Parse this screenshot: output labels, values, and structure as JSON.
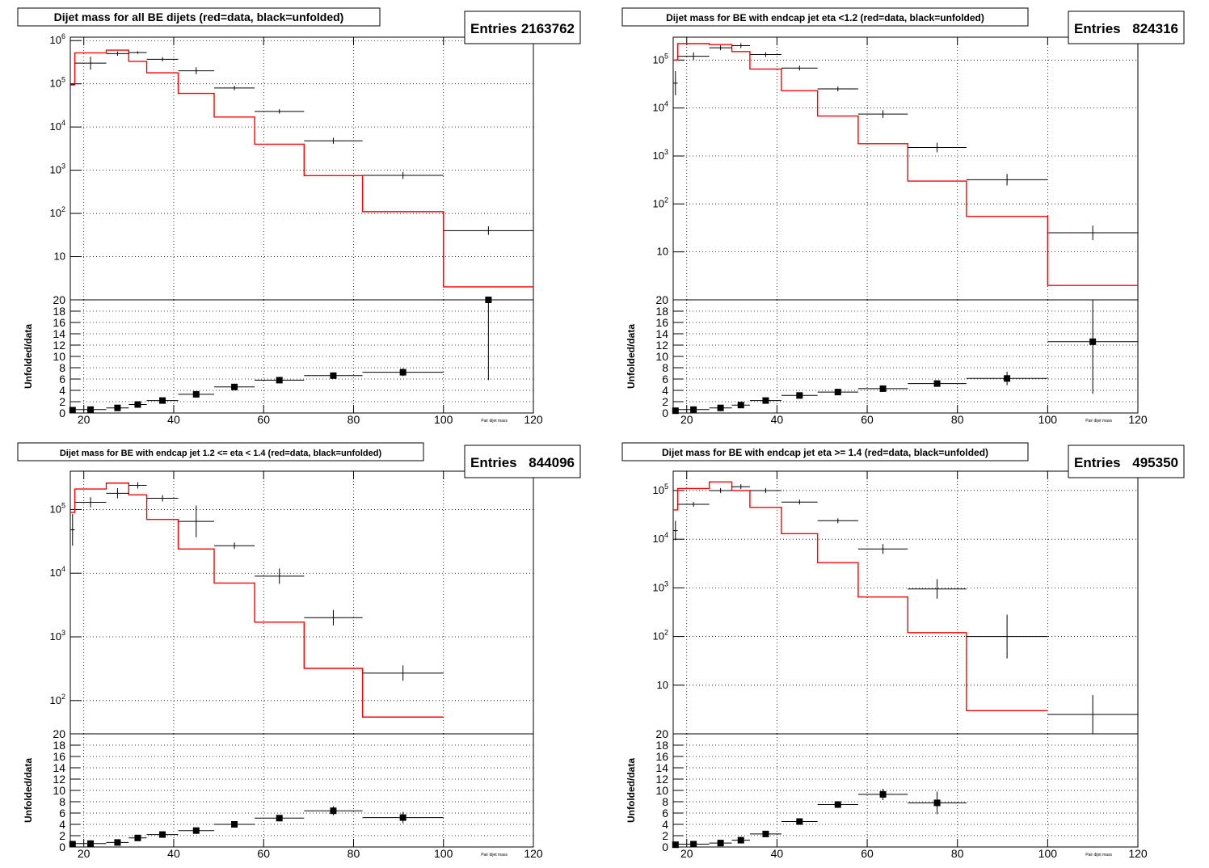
{
  "panels": [
    {
      "title": "Dijet mass for all BE dijets (red=data, black=unfolded)",
      "stats_label": "Entries",
      "stats_value": "2163762",
      "x_axis_label": "Pair dijet mass"
    },
    {
      "title": "Dijet mass for BE with endcap jet eta <1.2 (red=data, black=unfolded)",
      "stats_label": "Entries",
      "stats_value": "824316",
      "x_axis_label": "Pair dijet mass"
    },
    {
      "title": "Dijet mass for BE with endcap jet 1.2 <= eta < 1.4 (red=data, black=unfolded)",
      "stats_label": "Entries",
      "stats_value": "844096",
      "x_axis_label": "Pair dijet mass"
    },
    {
      "title": "Dijet mass for BE with endcap jet eta >= 1.4 (red=data, black=unfolded)",
      "stats_label": "Entries",
      "stats_value": "495350",
      "x_axis_label": "Pair dijet mass"
    }
  ],
  "chart_data": [
    {
      "type": "line",
      "title": "Dijet mass for all BE dijets (red=data, black=unfolded)",
      "x_bin_edges": [
        17,
        18,
        25,
        30,
        34,
        41,
        49,
        58,
        69,
        82,
        100,
        120
      ],
      "x_ticks": [
        20,
        40,
        60,
        80,
        100,
        120
      ],
      "xlim": [
        17,
        120
      ],
      "main": {
        "log_y": true,
        "ylim": [
          1,
          1200000
        ],
        "y_tick_labels": [
          "10",
          "10^2",
          "10^3",
          "10^4",
          "10^5",
          "10^6"
        ],
        "grid": true,
        "series": [
          {
            "name": "data",
            "color": "#ff0000",
            "values": [
              95000,
              520000,
              600000,
              330000,
              180000,
              60000,
              17000,
              4000,
              750,
              110,
              2
            ]
          },
          {
            "name": "unfolded",
            "color": "#000000",
            "values": [
              95000,
              300000,
              500000,
              530000,
              370000,
              200000,
              80000,
              23000,
              4800,
              760,
              40
            ],
            "errors": [
              0,
              0.15,
              0.05,
              0.03,
              0.05,
              0.08,
              0.05,
              0.05,
              0.07,
              0.08,
              0.1
            ]
          }
        ]
      },
      "ratio": {
        "ylabel": "Unfolded/data",
        "ylim": [
          0,
          20
        ],
        "y_ticks": [
          0,
          2,
          4,
          6,
          8,
          10,
          12,
          14,
          16,
          18,
          20
        ],
        "grid": true,
        "values": [
          0.5,
          0.6,
          0.9,
          1.5,
          2.2,
          3.3,
          4.6,
          5.8,
          6.6,
          7.2,
          20
        ],
        "errors": [
          0.2,
          0.2,
          0.2,
          0.2,
          0.3,
          0.3,
          0.3,
          0.4,
          0.5,
          0.7,
          14.2
        ]
      }
    },
    {
      "type": "line",
      "title": "Dijet mass for BE with endcap jet eta <1.2 (red=data, black=unfolded)",
      "x_bin_edges": [
        17,
        18,
        25,
        30,
        34,
        41,
        49,
        58,
        69,
        82,
        100,
        120
      ],
      "x_ticks": [
        20,
        40,
        60,
        80,
        100,
        120
      ],
      "xlim": [
        17,
        120
      ],
      "main": {
        "log_y": true,
        "ylim": [
          1,
          300000
        ],
        "y_tick_labels": [
          "10",
          "10^2",
          "10^3",
          "10^4",
          "10^5"
        ],
        "grid": true,
        "series": [
          {
            "name": "data",
            "color": "#ff0000",
            "values": [
              100000,
              220000,
              210000,
              150000,
              65000,
              23000,
              6800,
              1800,
              300,
              55,
              2
            ]
          },
          {
            "name": "unfolded",
            "color": "#000000",
            "values": [
              33000,
              120000,
              180000,
              200000,
              130000,
              68000,
              25000,
              7500,
              1500,
              320,
              25
            ],
            "errors": [
              0.25,
              0.08,
              0.05,
              0.05,
              0.05,
              0.05,
              0.05,
              0.08,
              0.1,
              0.12,
              0.15
            ]
          }
        ]
      },
      "ratio": {
        "ylabel": "Unfolded/data",
        "ylim": [
          0,
          20
        ],
        "y_ticks": [
          0,
          2,
          4,
          6,
          8,
          10,
          12,
          14,
          16,
          18,
          20
        ],
        "grid": true,
        "values": [
          0.4,
          0.6,
          0.9,
          1.4,
          2.2,
          3.1,
          3.7,
          4.3,
          5.2,
          6.1,
          12.6
        ],
        "errors": [
          0.2,
          0.2,
          0.2,
          0.2,
          0.3,
          0.3,
          0.3,
          0.4,
          0.5,
          1.2,
          9.2
        ]
      }
    },
    {
      "type": "line",
      "title": "Dijet mass for BE with endcap jet 1.2 <= eta < 1.4 (red=data, black=unfolded)",
      "x_bin_edges": [
        17,
        18,
        25,
        30,
        34,
        41,
        49,
        58,
        69,
        82,
        100,
        120
      ],
      "x_ticks": [
        20,
        40,
        60,
        80,
        100,
        120
      ],
      "xlim": [
        17,
        120
      ],
      "main": {
        "log_y": true,
        "ylim": [
          30,
          400000
        ],
        "y_tick_labels": [
          "10^2",
          "10^3",
          "10^4",
          "10^5"
        ],
        "grid": true,
        "series": [
          {
            "name": "data",
            "color": "#ff0000",
            "values": [
              90000,
              210000,
              260000,
              170000,
              70000,
              24000,
              7000,
              1700,
              320,
              55,
              null
            ]
          },
          {
            "name": "unfolded",
            "color": "#000000",
            "values": [
              48000,
              130000,
              180000,
              240000,
              150000,
              65000,
              27000,
              9000,
              2000,
              270,
              null
            ],
            "errors": [
              0.25,
              0.08,
              0.08,
              0.05,
              0.05,
              0.25,
              0.05,
              0.12,
              0.12,
              0.12,
              0
            ]
          }
        ]
      },
      "ratio": {
        "ylabel": "Unfolded/data",
        "ylim": [
          0,
          20
        ],
        "y_ticks": [
          0,
          2,
          4,
          6,
          8,
          10,
          12,
          14,
          16,
          18,
          20
        ],
        "grid": true,
        "values": [
          0.5,
          0.6,
          0.8,
          1.6,
          2.2,
          2.9,
          4.0,
          5.1,
          6.4,
          5.2,
          null
        ],
        "errors": [
          0.2,
          0.2,
          0.2,
          0.3,
          0.3,
          0.4,
          0.4,
          0.5,
          0.8,
          1.0,
          0
        ]
      }
    },
    {
      "type": "line",
      "title": "Dijet mass for BE with endcap jet eta >= 1.4 (red=data, black=unfolded)",
      "x_bin_edges": [
        17,
        18,
        25,
        30,
        34,
        41,
        49,
        58,
        69,
        82,
        100,
        120
      ],
      "x_ticks": [
        20,
        40,
        60,
        80,
        100,
        120
      ],
      "xlim": [
        17,
        120
      ],
      "main": {
        "log_y": true,
        "ylim": [
          1,
          250000
        ],
        "y_tick_labels": [
          "10",
          "10^2",
          "10^3",
          "10^4",
          "10^5"
        ],
        "grid": true,
        "series": [
          {
            "name": "data",
            "color": "#ff0000",
            "values": [
              40000,
              110000,
              150000,
              100000,
              45000,
              13000,
              3300,
              650,
              120,
              3,
              null
            ]
          },
          {
            "name": "unfolded",
            "color": "#000000",
            "values": [
              15000,
              52000,
              100000,
              120000,
              100000,
              58000,
              24000,
              6300,
              950,
              100,
              2.5
            ],
            "errors": [
              0.2,
              0.05,
              0.05,
              0.05,
              0.05,
              0.05,
              0.05,
              0.1,
              0.2,
              0.45,
              0.4
            ]
          }
        ]
      },
      "ratio": {
        "ylabel": "Unfolded/data",
        "ylim": [
          0,
          20
        ],
        "y_ticks": [
          0,
          2,
          4,
          6,
          8,
          10,
          12,
          14,
          16,
          18,
          20
        ],
        "grid": true,
        "values": [
          0.4,
          0.5,
          0.7,
          1.2,
          2.3,
          4.5,
          7.5,
          9.3,
          7.8,
          null,
          null
        ],
        "errors": [
          0.2,
          0.2,
          0.2,
          0.3,
          0.3,
          0.5,
          0.6,
          1.0,
          2.0,
          0,
          0
        ]
      }
    }
  ]
}
